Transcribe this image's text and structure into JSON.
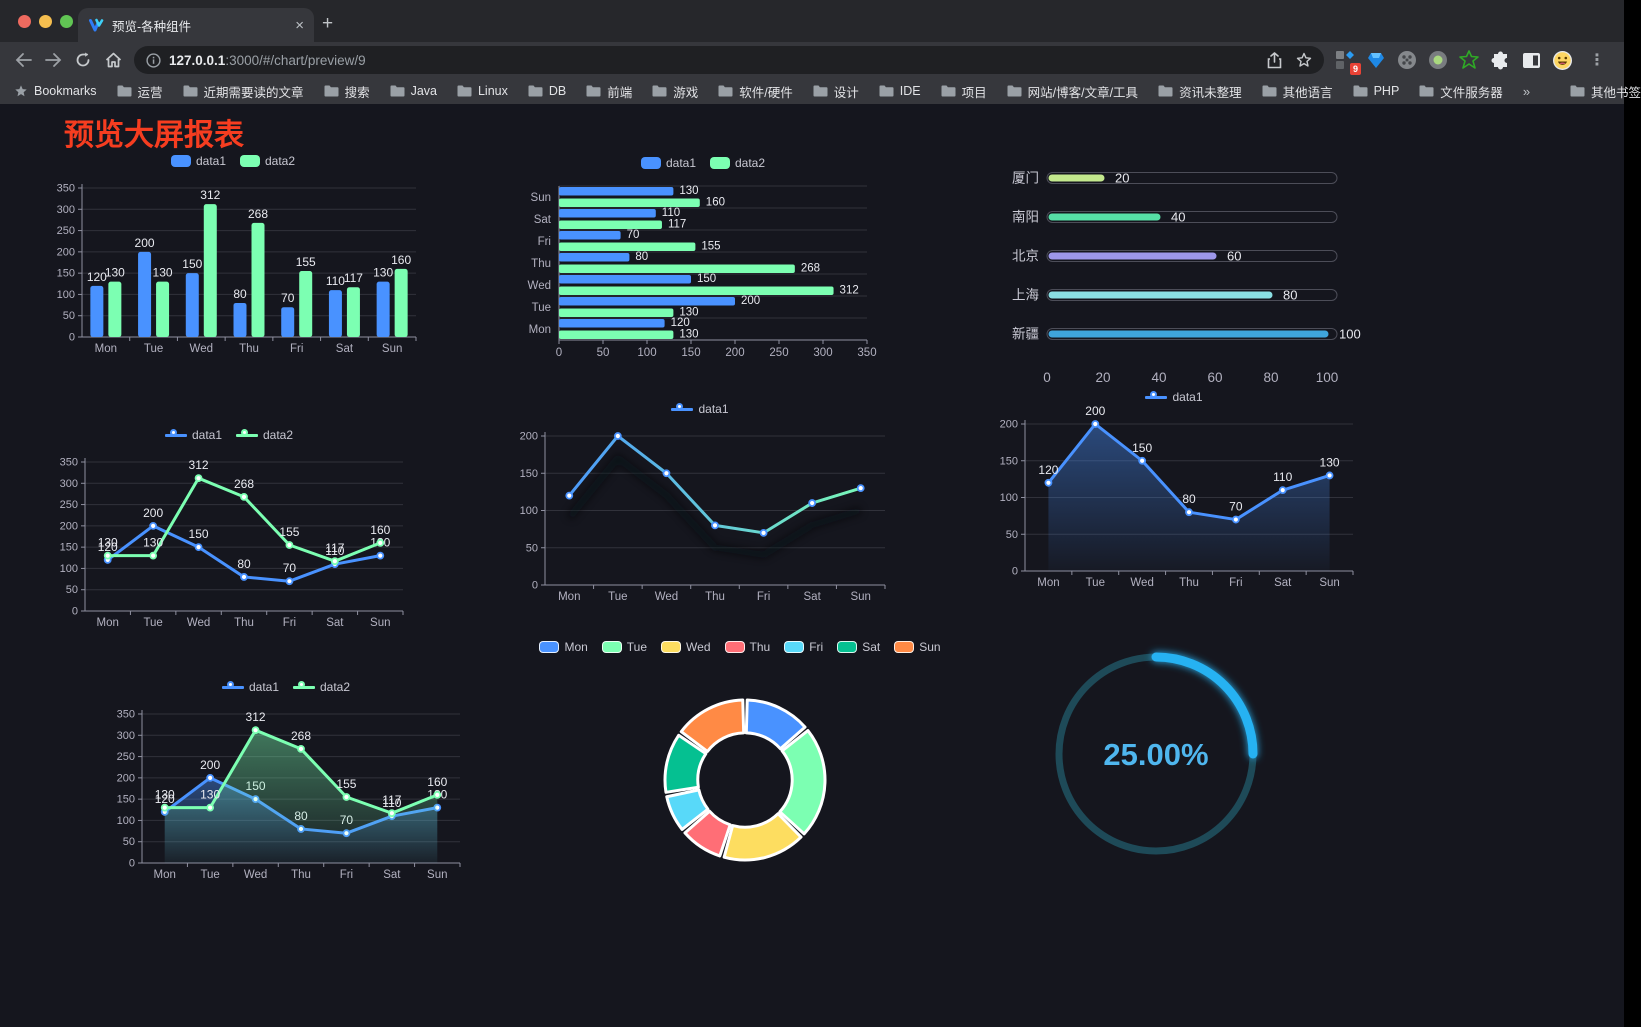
{
  "browser": {
    "tab": {
      "title": "预览-各种组件",
      "close_glyph": "×",
      "new_tab_glyph": "+"
    },
    "url": {
      "host": "127.0.0.1",
      "rest": ":3000/#/chart/preview/9"
    },
    "bookmarks_label": "Bookmarks",
    "bookmarks": [
      "运营",
      "近期需要读的文章",
      "搜索",
      "Java",
      "Linux",
      "DB",
      "前端",
      "游戏",
      "软件/硬件",
      "设计",
      "IDE",
      "项目",
      "网站/博客/文章/工具",
      "资讯未整理",
      "其他语言",
      "PHP",
      "文件服务器"
    ],
    "bookmarks_overflow_glyph": "»",
    "other_bookmarks_label": "其他书签",
    "extension_badge": "9",
    "menu_glyph": "⋮"
  },
  "page": {
    "title": "预览大屏报表"
  },
  "theme": {
    "background": "#15161e",
    "grid_line": "#31323b",
    "axis_line": "#8f90a0",
    "tick_text": "#b2b1c0",
    "value_label": "#e9eaf0",
    "title_red": "#f63d20"
  },
  "chart_data": [
    {
      "id": "grouped-bar",
      "type": "bar",
      "categories": [
        "Mon",
        "Tue",
        "Wed",
        "Thu",
        "Fri",
        "Sat",
        "Sun"
      ],
      "series": [
        {
          "name": "data1",
          "color": "#4992ff",
          "values": [
            120,
            200,
            150,
            80,
            70,
            110,
            130
          ]
        },
        {
          "name": "data2",
          "color": "#7cffb2",
          "values": [
            130,
            130,
            312,
            268,
            155,
            117,
            160
          ]
        }
      ],
      "ylim": [
        0,
        350
      ],
      "ytick_step": 50,
      "grid": true,
      "legend_position": "top",
      "show_labels": true
    },
    {
      "id": "horizontal-bar",
      "type": "bar-horizontal",
      "categories": [
        "Mon",
        "Tue",
        "Wed",
        "Thu",
        "Fri",
        "Sat",
        "Sun"
      ],
      "series": [
        {
          "name": "data1",
          "color": "#4992ff",
          "values": [
            120,
            200,
            150,
            80,
            70,
            110,
            130
          ]
        },
        {
          "name": "data2",
          "color": "#7cffb2",
          "values": [
            130,
            130,
            312,
            268,
            155,
            117,
            160
          ]
        }
      ],
      "xlim": [
        0,
        350
      ],
      "xtick_step": 50,
      "legend_position": "top",
      "show_labels": true
    },
    {
      "id": "progress-bars",
      "type": "progress-bar",
      "categories": [
        "厦门",
        "南阳",
        "北京",
        "上海",
        "新疆"
      ],
      "values": [
        20,
        40,
        60,
        80,
        100
      ],
      "colors": [
        "#c3e88d",
        "#56dfa6",
        "#9d97ea",
        "#8adfe3",
        "#3fa5dc"
      ],
      "xlim": [
        0,
        100
      ],
      "xticks": [
        0,
        20,
        40,
        60,
        80,
        100
      ]
    },
    {
      "id": "line-dual",
      "type": "line",
      "categories": [
        "Mon",
        "Tue",
        "Wed",
        "Thu",
        "Fri",
        "Sat",
        "Sun"
      ],
      "series": [
        {
          "name": "data1",
          "color": "#4992ff",
          "values": [
            120,
            200,
            150,
            80,
            70,
            110,
            130
          ]
        },
        {
          "name": "data2",
          "color": "#7cffb2",
          "values": [
            130,
            130,
            312,
            268,
            155,
            117,
            160
          ]
        }
      ],
      "ylim": [
        0,
        350
      ],
      "ytick_step": 50,
      "legend_position": "top",
      "show_labels": true
    },
    {
      "id": "line-gradient",
      "type": "line",
      "categories": [
        "Mon",
        "Tue",
        "Wed",
        "Thu",
        "Fri",
        "Sat",
        "Sun"
      ],
      "series": [
        {
          "name": "data1",
          "color": "#4992ff",
          "color2": "#7cffb2",
          "gradient": true,
          "shadow": true,
          "values": [
            120,
            200,
            150,
            80,
            70,
            110,
            130
          ]
        }
      ],
      "ylim": [
        0,
        200
      ],
      "ytick_step": 50,
      "legend_position": "top",
      "show_labels": false
    },
    {
      "id": "line-area",
      "type": "line",
      "categories": [
        "Mon",
        "Tue",
        "Wed",
        "Thu",
        "Fri",
        "Sat",
        "Sun"
      ],
      "series": [
        {
          "name": "data1",
          "color": "#4992ff",
          "area": true,
          "values": [
            120,
            200,
            150,
            80,
            70,
            110,
            130
          ]
        }
      ],
      "ylim": [
        0,
        200
      ],
      "ytick_step": 50,
      "legend_position": "top",
      "show_labels": true
    },
    {
      "id": "line-dual-area",
      "type": "line",
      "categories": [
        "Mon",
        "Tue",
        "Wed",
        "Thu",
        "Fri",
        "Sat",
        "Sun"
      ],
      "series": [
        {
          "name": "data1",
          "color": "#4992ff",
          "area": true,
          "values": [
            120,
            200,
            150,
            80,
            70,
            110,
            130
          ]
        },
        {
          "name": "data2",
          "color": "#7cffb2",
          "area": true,
          "values": [
            130,
            130,
            312,
            268,
            155,
            117,
            160
          ]
        }
      ],
      "ylim": [
        0,
        350
      ],
      "ytick_step": 50,
      "legend_position": "top",
      "show_labels": true
    },
    {
      "id": "donut",
      "type": "pie",
      "categories": [
        "Mon",
        "Tue",
        "Wed",
        "Thu",
        "Fri",
        "Sat",
        "Sun"
      ],
      "values": [
        120,
        200,
        150,
        80,
        70,
        110,
        130
      ],
      "colors": [
        "#4992ff",
        "#7cffb2",
        "#fddd60",
        "#ff6e76",
        "#58d9f9",
        "#05c091",
        "#ff8a45"
      ],
      "inner_radius_ratio": 0.59,
      "legend_position": "top"
    },
    {
      "id": "gauge",
      "type": "gauge",
      "value": 25,
      "max": 100,
      "label": "25.00%",
      "color": "#28b2f2",
      "track_color": "#1e4a58",
      "text_color": "#4fb6ee"
    }
  ]
}
